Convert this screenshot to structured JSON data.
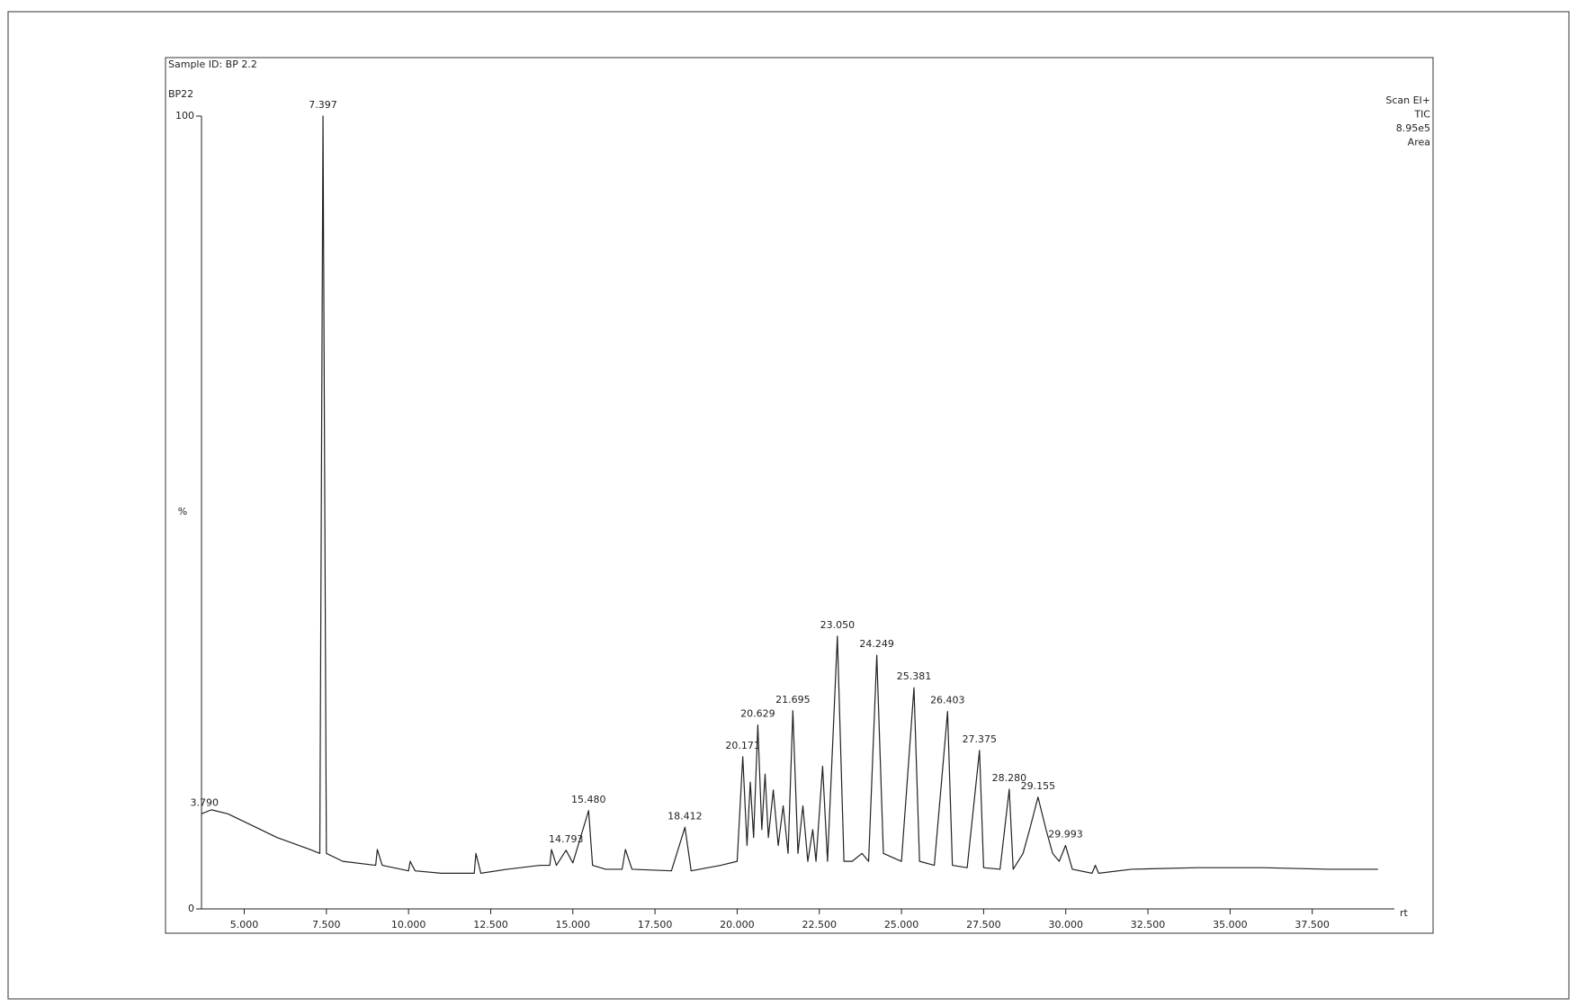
{
  "chart_data": {
    "type": "line",
    "title": "Sample ID: BP 2.2",
    "subtitle": "BP22",
    "annotations": [
      "Scan EI+",
      "8.95e5",
      "Area"
    ],
    "y_label": "%",
    "x_label": "rt",
    "xlim": [
      3.7,
      40
    ],
    "ylim": [
      0,
      100
    ],
    "xticks": [
      {
        "value": 5,
        "label": "5.000"
      },
      {
        "value": 7.5,
        "label": "7.500"
      },
      {
        "value": 10,
        "label": "10.000"
      },
      {
        "value": 12.5,
        "label": "12.500"
      },
      {
        "value": 15,
        "label": "15.000"
      },
      {
        "value": 17.5,
        "label": "17.500"
      },
      {
        "value": 20,
        "label": "20.000"
      },
      {
        "value": 22.5,
        "label": "22.500"
      },
      {
        "value": 25,
        "label": "25.000"
      },
      {
        "value": 27.5,
        "label": "27.500"
      },
      {
        "value": 30,
        "label": "30.000"
      },
      {
        "value": 32.5,
        "label": "32.500"
      },
      {
        "value": 35,
        "label": "35.000"
      },
      {
        "value": 37.5,
        "label": "37.500"
      }
    ],
    "yticks": [
      0,
      100
    ],
    "x": [
      3.7,
      4.0,
      4.5,
      5,
      6,
      7,
      7.3,
      7.397,
      7.5,
      8,
      9,
      9.05,
      9.2,
      10,
      10.05,
      10.2,
      11,
      12,
      12.05,
      12.2,
      13,
      14,
      14.3,
      14.35,
      14.5,
      14.793,
      15,
      15.48,
      15.6,
      16,
      16.5,
      16.6,
      16.8,
      18,
      18.412,
      18.6,
      19.5,
      20,
      20.171,
      20.3,
      20.4,
      20.5,
      20.629,
      20.75,
      20.85,
      20.95,
      21.1,
      21.25,
      21.4,
      21.55,
      21.695,
      21.85,
      22.0,
      22.15,
      22.3,
      22.4,
      22.6,
      22.75,
      23.05,
      23.25,
      23.5,
      23.8,
      24.0,
      24.249,
      24.45,
      25,
      25.381,
      25.55,
      26,
      26.403,
      26.55,
      27,
      27.375,
      27.5,
      28,
      28.28,
      28.4,
      28.7,
      28.9,
      29.155,
      29.4,
      29.6,
      29.8,
      29.993,
      30.2,
      30.8,
      30.9,
      31,
      32,
      34,
      36,
      38,
      39.5
    ],
    "series": [
      {
        "name": "TIC",
        "color": "#222222",
        "values": [
          12,
          12.5,
          12,
          11,
          9,
          7.5,
          7,
          100,
          7,
          6,
          5.5,
          7.5,
          5.5,
          4.8,
          6,
          4.8,
          4.5,
          4.5,
          7,
          4.5,
          5,
          5.5,
          5.5,
          7.5,
          5.5,
          7.4,
          5.8,
          12.4,
          5.5,
          5,
          5,
          7.5,
          5,
          4.8,
          10.3,
          4.8,
          5.5,
          6,
          19.2,
          8,
          16,
          9,
          23.2,
          10,
          17,
          9,
          15,
          8,
          13,
          7,
          25,
          7,
          13,
          6,
          10,
          6,
          18,
          6,
          34.4,
          6,
          6,
          7,
          6,
          32,
          7,
          6,
          27.9,
          6,
          5.5,
          24.9,
          5.5,
          5.2,
          20,
          5.2,
          5,
          15.1,
          5,
          7,
          10,
          14.1,
          10,
          7,
          6,
          8,
          5,
          4.5,
          5.5,
          4.5,
          5,
          5.2,
          5.2,
          5,
          5
        ]
      }
    ],
    "peak_labels": [
      {
        "value": 3.79,
        "label": "3.790"
      },
      {
        "value": 7.397,
        "label": "7.397"
      },
      {
        "value": 14.793,
        "label": "14.793"
      },
      {
        "value": 15.48,
        "label": "15.480"
      },
      {
        "value": 18.412,
        "label": "18.412"
      },
      {
        "value": 20.171,
        "label": "20.171"
      },
      {
        "value": 20.629,
        "label": "20.629"
      },
      {
        "value": 21.695,
        "label": "21.695"
      },
      {
        "value": 23.05,
        "label": "23.050"
      },
      {
        "value": 24.249,
        "label": "24.249"
      },
      {
        "value": 25.381,
        "label": "25.381"
      },
      {
        "value": 26.403,
        "label": "26.403"
      },
      {
        "value": 27.375,
        "label": "27.375"
      },
      {
        "value": 28.28,
        "label": "28.280"
      },
      {
        "value": 29.155,
        "label": "29.155"
      },
      {
        "value": 29.993,
        "label": "29.993"
      }
    ]
  }
}
